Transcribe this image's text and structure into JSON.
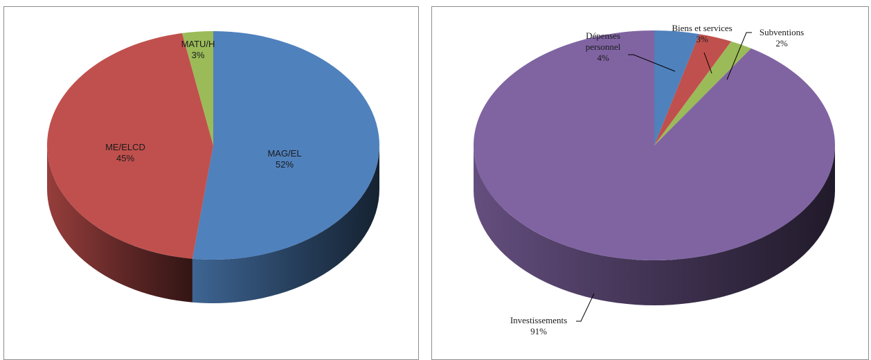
{
  "chart_data": [
    {
      "type": "pie",
      "style": "3d",
      "slices": [
        {
          "label": "MAG/EL",
          "value": 52,
          "value_label": "52%",
          "color": "#4f81bd"
        },
        {
          "label": "ME/ELCD",
          "value": 45,
          "value_label": "45%",
          "color": "#c0504d"
        },
        {
          "label": "MATU/H",
          "value": 3,
          "value_label": "3%",
          "color": "#9bbb59"
        }
      ]
    },
    {
      "type": "pie",
      "style": "3d",
      "slices": [
        {
          "label": "Dépenses personnel",
          "label_lines": [
            "Dépenses",
            "personnel"
          ],
          "value": 4,
          "value_label": "4%",
          "color": "#4f81bd"
        },
        {
          "label": "Biens et services",
          "label_lines": [
            "Biens et services"
          ],
          "value": 3,
          "value_label": "3%",
          "color": "#c0504d"
        },
        {
          "label": "Subventions",
          "label_lines": [
            "Subventions"
          ],
          "value": 2,
          "value_label": "2%",
          "color": "#9bbb59"
        },
        {
          "label": "Investissements",
          "label_lines": [
            "Investissements"
          ],
          "value": 91,
          "value_label": "91%",
          "color": "#8064a2"
        }
      ]
    }
  ]
}
